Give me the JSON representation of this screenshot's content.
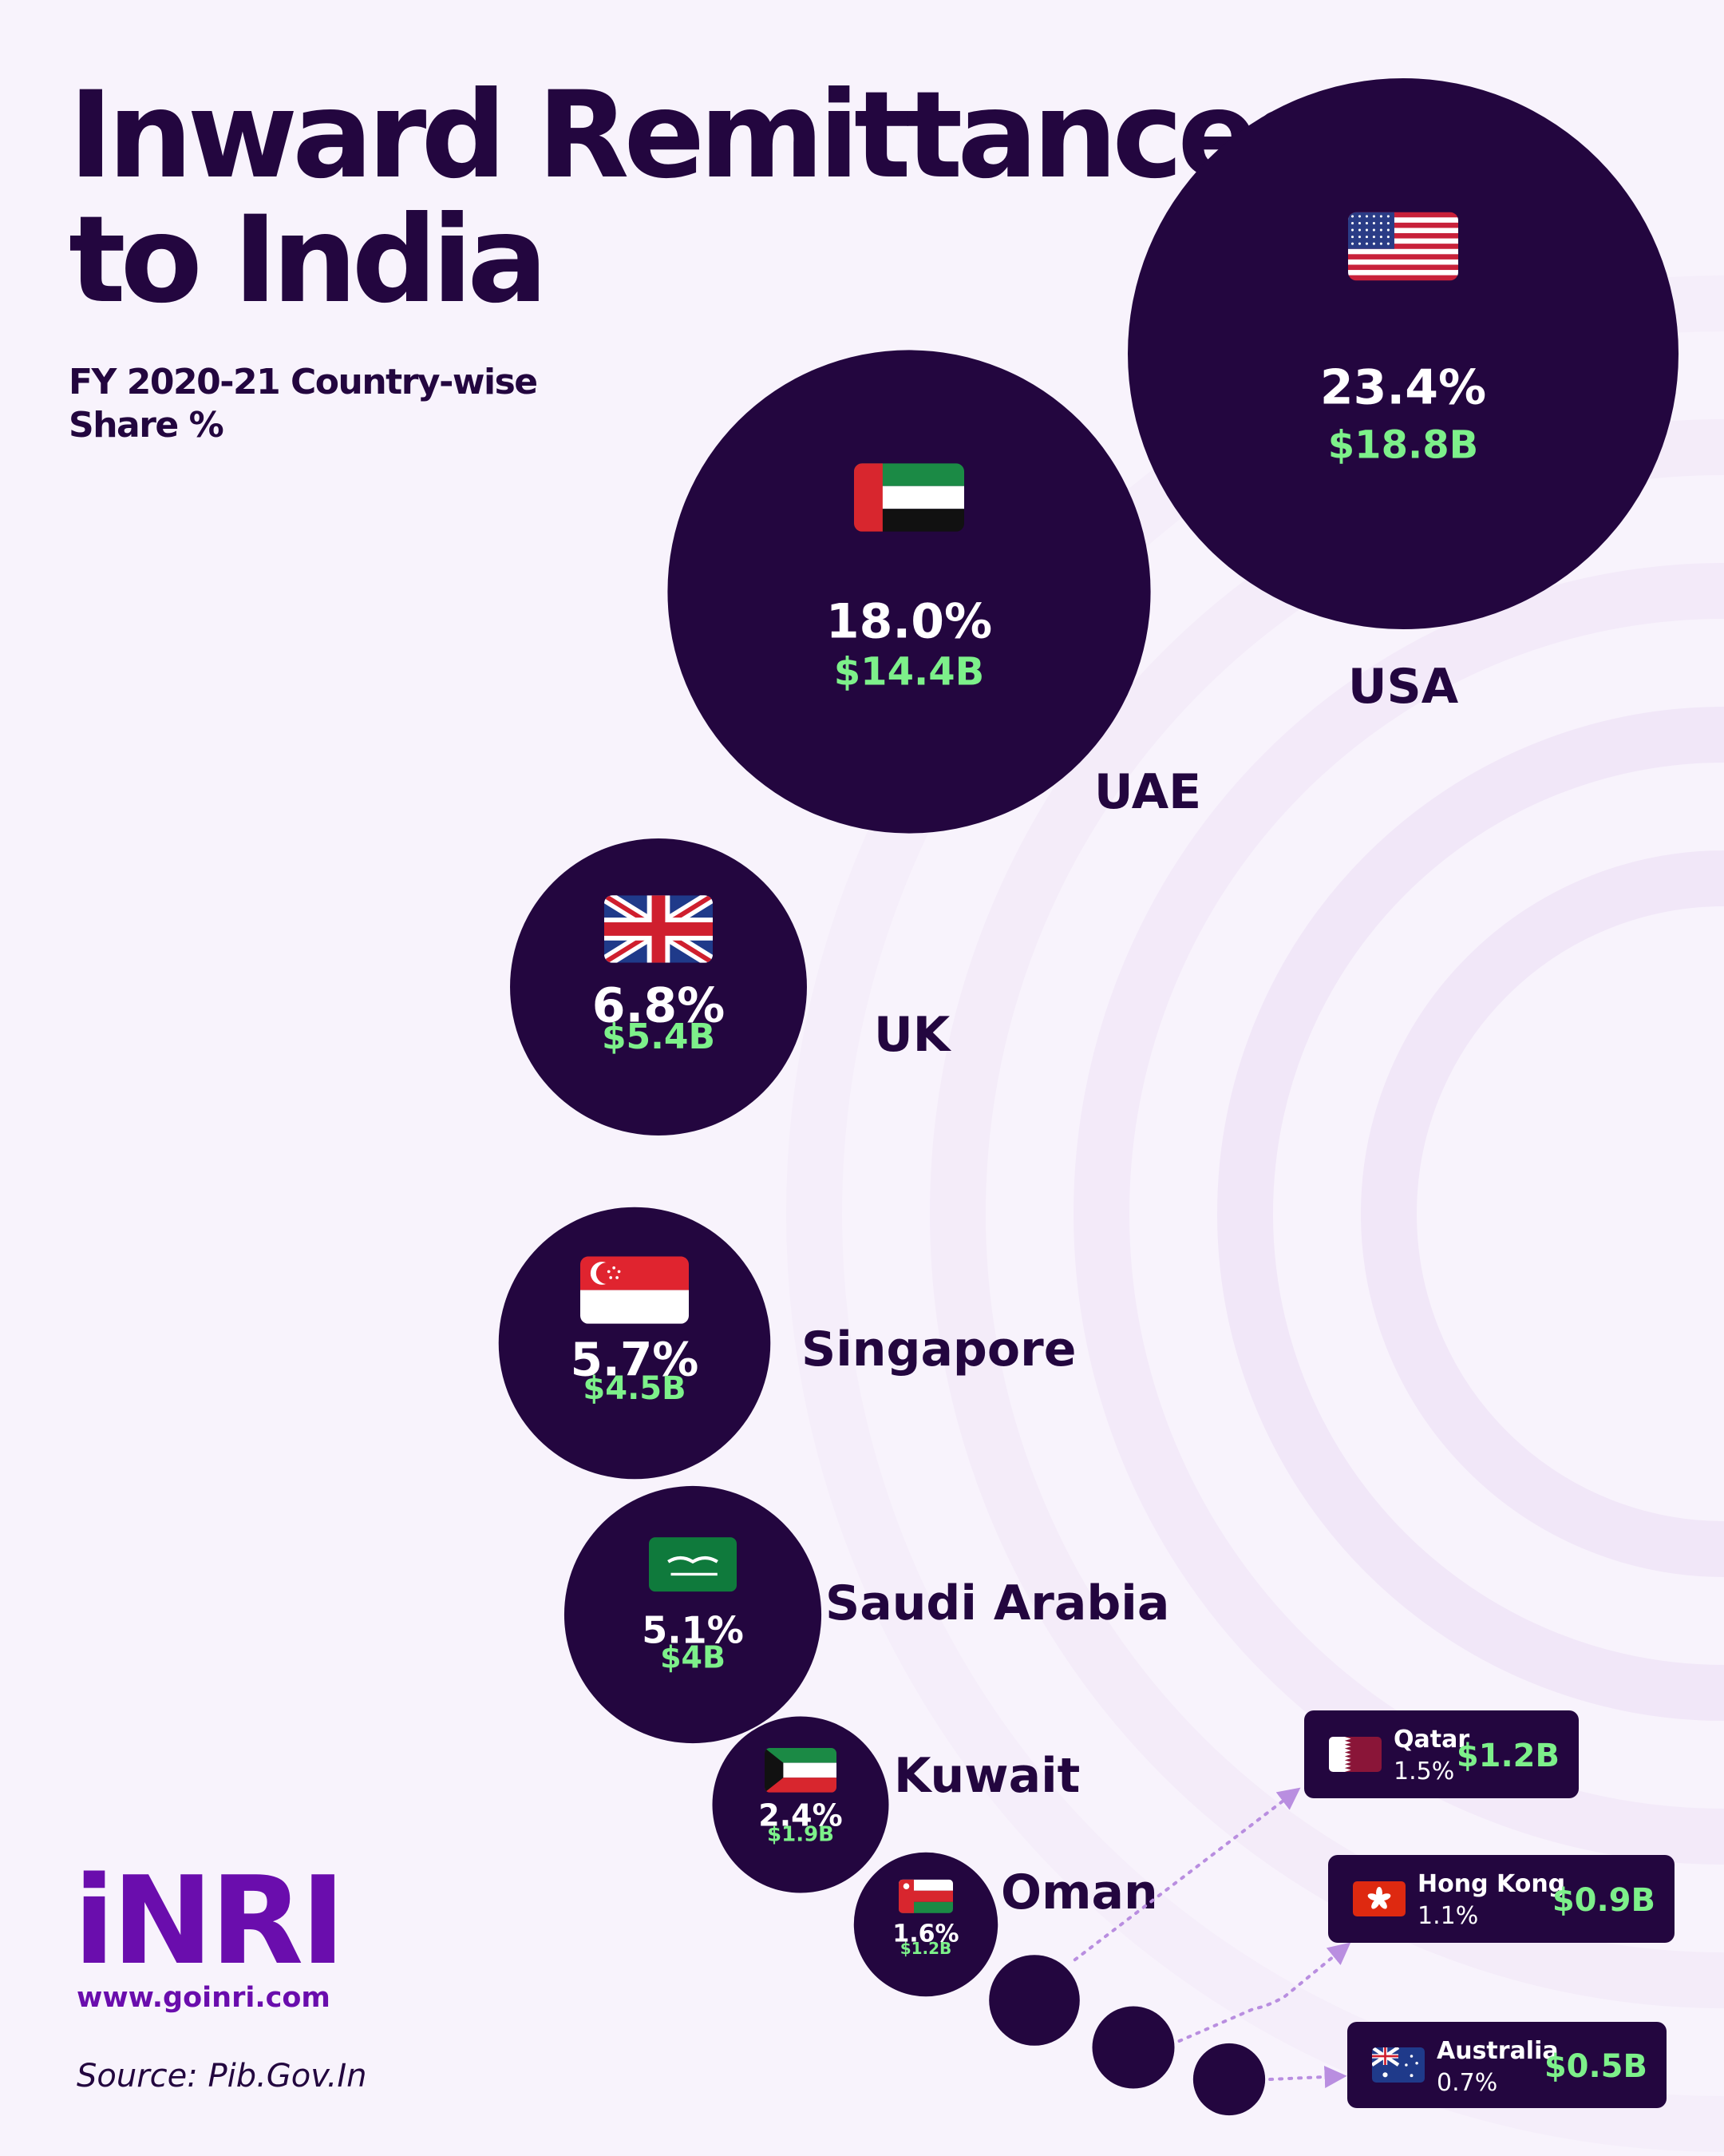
{
  "header": {
    "title_line1": "Inward Remittances",
    "title_line2": "to India",
    "subtitle_line1": "FY 2020-21 Country-wise",
    "subtitle_line2": "Share %"
  },
  "brand": {
    "logo": "iNRI",
    "website": "www.goinri.com",
    "source": "Source: Pib.Gov.In"
  },
  "colors": {
    "background": "#f8f3fc",
    "bubble": "#23063f",
    "value_green": "#7df08a",
    "text_dark": "#23063f",
    "brand_purple": "#6a0dad",
    "connector": "#b98ee0"
  },
  "chart_data": {
    "type": "bubble",
    "title": "Inward Remittances to India",
    "subtitle": "FY 2020-21 Country-wise Share %",
    "value_unit": "USD billions",
    "series": [
      {
        "country": "USA",
        "flag": "us-flag",
        "share_label": "23.4%",
        "share": 23.4,
        "amount_label": "$18.8B",
        "amount": 18.8
      },
      {
        "country": "UAE",
        "flag": "uae-flag",
        "share_label": "18.0%",
        "share": 18.0,
        "amount_label": "$14.4B",
        "amount": 14.4
      },
      {
        "country": "UK",
        "flag": "uk-flag",
        "share_label": "6.8%",
        "share": 6.8,
        "amount_label": "$5.4B",
        "amount": 5.4
      },
      {
        "country": "Singapore",
        "flag": "singapore-flag",
        "share_label": "5.7%",
        "share": 5.7,
        "amount_label": "$4.5B",
        "amount": 4.5
      },
      {
        "country": "Saudi Arabia",
        "flag": "saudi-arabia-flag",
        "share_label": "5.1%",
        "share": 5.1,
        "amount_label": "$4B",
        "amount": 4.0
      },
      {
        "country": "Kuwait",
        "flag": "kuwait-flag",
        "share_label": "2.4%",
        "share": 2.4,
        "amount_label": "$1.9B",
        "amount": 1.9
      },
      {
        "country": "Oman",
        "flag": "oman-flag",
        "share_label": "1.6%",
        "share": 1.6,
        "amount_label": "$1.2B",
        "amount": 1.2
      },
      {
        "country": "Qatar",
        "flag": "qatar-flag",
        "share_label": "1.5%",
        "share": 1.5,
        "amount_label": "$1.2B",
        "amount": 1.2,
        "callout": true
      },
      {
        "country": "Hong Kong",
        "flag": "hong-kong-flag",
        "share_label": "1.1%",
        "share": 1.1,
        "amount_label": "$0.9B",
        "amount": 0.9,
        "callout": true
      },
      {
        "country": "Australia",
        "flag": "australia-flag",
        "share_label": "0.7%",
        "share": 0.7,
        "amount_label": "$0.5B",
        "amount": 0.5,
        "callout": true
      }
    ]
  }
}
